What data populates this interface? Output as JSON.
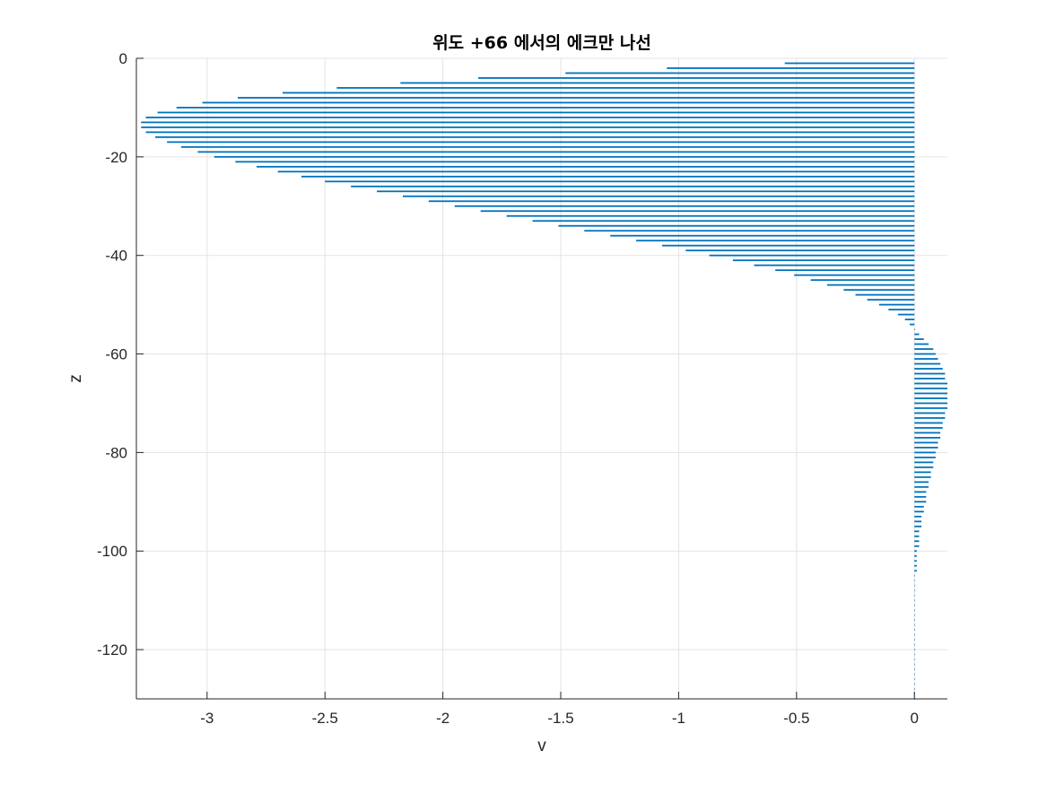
{
  "chart_data": {
    "type": "bar",
    "orientation": "horizontal",
    "title": "위도 +66 에서의 에크만 나선",
    "xlabel": "v",
    "ylabel": "z",
    "xlim": [
      -3.3,
      0.14
    ],
    "ylim": [
      -130,
      0
    ],
    "xticks": [
      -3,
      -2.5,
      -2,
      -1.5,
      -1,
      -0.5,
      0
    ],
    "xtick_labels": [
      "-3",
      "-2.5",
      "-2",
      "-1.5",
      "-1",
      "-0.5",
      "0"
    ],
    "yticks": [
      0,
      -20,
      -40,
      -60,
      -80,
      -100,
      -120
    ],
    "ytick_labels": [
      "0",
      "-20",
      "-40",
      "-60",
      "-80",
      "-100",
      "-120"
    ],
    "grid": true,
    "bar_color": "#0072bd",
    "z": [
      -1,
      -2,
      -3,
      -4,
      -5,
      -6,
      -7,
      -8,
      -9,
      -10,
      -11,
      -12,
      -13,
      -14,
      -15,
      -16,
      -17,
      -18,
      -19,
      -20,
      -21,
      -22,
      -23,
      -24,
      -25,
      -26,
      -27,
      -28,
      -29,
      -30,
      -31,
      -32,
      -33,
      -34,
      -35,
      -36,
      -37,
      -38,
      -39,
      -40,
      -41,
      -42,
      -43,
      -44,
      -45,
      -46,
      -47,
      -48,
      -49,
      -50,
      -51,
      -52,
      -53,
      -54,
      -55,
      -56,
      -57,
      -58,
      -59,
      -60,
      -61,
      -62,
      -63,
      -64,
      -65,
      -66,
      -67,
      -68,
      -69,
      -70,
      -71,
      -72,
      -73,
      -74,
      -75,
      -76,
      -77,
      -78,
      -79,
      -80,
      -81,
      -82,
      -83,
      -84,
      -85,
      -86,
      -87,
      -88,
      -89,
      -90,
      -91,
      -92,
      -93,
      -94,
      -95,
      -96,
      -97,
      -98,
      -99,
      -100,
      -101,
      -102,
      -103,
      -104,
      -105,
      -106,
      -107,
      -108,
      -109,
      -110,
      -111,
      -112,
      -113,
      -114,
      -115,
      -116,
      -117,
      -118,
      -119,
      -120,
      -121,
      -122,
      -123,
      -124,
      -125,
      -126,
      -127,
      -128,
      -129,
      -130
    ],
    "v": [
      -0.55,
      -1.05,
      -1.48,
      -1.85,
      -2.18,
      -2.45,
      -2.68,
      -2.87,
      -3.02,
      -3.13,
      -3.21,
      -3.26,
      -3.28,
      -3.28,
      -3.26,
      -3.22,
      -3.17,
      -3.11,
      -3.04,
      -2.97,
      -2.88,
      -2.79,
      -2.7,
      -2.6,
      -2.5,
      -2.39,
      -2.28,
      -2.17,
      -2.06,
      -1.95,
      -1.84,
      -1.73,
      -1.62,
      -1.51,
      -1.4,
      -1.29,
      -1.18,
      -1.07,
      -0.97,
      -0.87,
      -0.77,
      -0.68,
      -0.59,
      -0.51,
      -0.44,
      -0.37,
      -0.3,
      -0.25,
      -0.2,
      -0.15,
      -0.11,
      -0.07,
      -0.04,
      -0.02,
      0.0,
      0.02,
      0.04,
      0.06,
      0.08,
      0.09,
      0.1,
      0.11,
      0.12,
      0.13,
      0.13,
      0.14,
      0.14,
      0.14,
      0.14,
      0.14,
      0.14,
      0.13,
      0.13,
      0.12,
      0.12,
      0.11,
      0.11,
      0.1,
      0.1,
      0.09,
      0.09,
      0.08,
      0.08,
      0.07,
      0.07,
      0.06,
      0.06,
      0.05,
      0.05,
      0.05,
      0.04,
      0.04,
      0.03,
      0.03,
      0.03,
      0.02,
      0.02,
      0.02,
      0.02,
      0.01,
      0.01,
      0.01,
      0.01,
      0.01,
      0.0,
      0.0,
      0.0,
      0.0,
      0.0,
      0.0,
      0.0,
      0.0,
      0.0,
      0.0,
      0.0,
      0.0,
      0.0,
      0.0,
      0.0,
      0.0,
      0.0,
      0.0,
      0.0,
      0.0,
      0.0,
      0.0,
      0.0,
      0.0,
      0.0,
      0.0
    ]
  }
}
